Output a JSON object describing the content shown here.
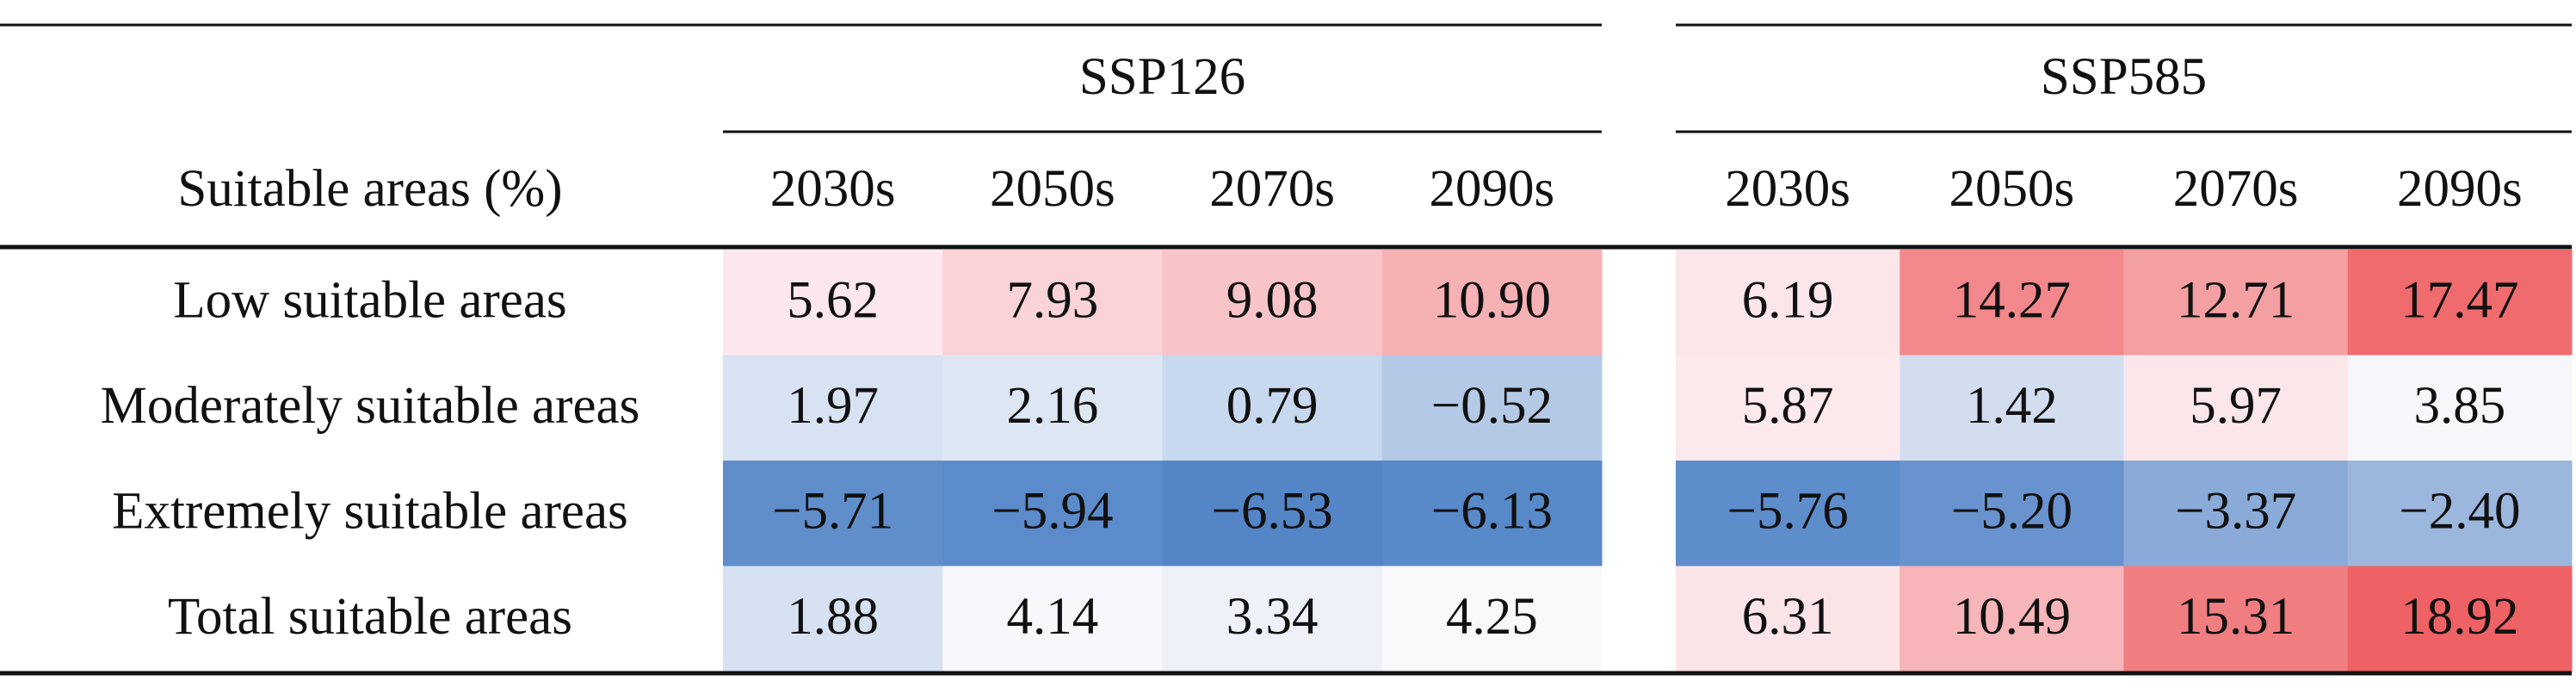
{
  "table": {
    "header_label": "Suitable areas (%)",
    "column_groups": [
      {
        "label": "SSP126",
        "years": [
          "2030s",
          "2050s",
          "2070s",
          "2090s"
        ]
      },
      {
        "label": "SSP585",
        "years": [
          "2030s",
          "2050s",
          "2070s",
          "2090s"
        ]
      }
    ],
    "rows": [
      {
        "label": "Low suitable areas",
        "values": [
          "5.62",
          "7.93",
          "9.08",
          "10.90",
          "6.19",
          "14.27",
          "12.71",
          "17.47"
        ],
        "colors": [
          "#fce8ec",
          "#f9d3d7",
          "#f8c4c8",
          "#f6b1b4",
          "#fbe6ea",
          "#f2888b",
          "#f4a0a2",
          "#ef6b6e"
        ]
      },
      {
        "label": "Moderately suitable areas",
        "values": [
          "1.97",
          "2.16",
          "0.79",
          "−0.52",
          "5.87",
          "1.42",
          "5.97",
          "3.85"
        ],
        "colors": [
          "#d7e2f2",
          "#dde7f4",
          "#c8d8ee",
          "#b4c9e6",
          "#fce9ec",
          "#d2def0",
          "#fbe6ea",
          "#f7f7fb"
        ]
      },
      {
        "label": "Extremely suitable areas",
        "values": [
          "−5.71",
          "−5.94",
          "−6.53",
          "−6.13",
          "−5.76",
          "−5.20",
          "−3.37",
          "−2.40"
        ],
        "colors": [
          "#5f8ecb",
          "#5b8bca",
          "#5485c7",
          "#5889c9",
          "#5e8dcb",
          "#6893ce",
          "#8aaad8",
          "#9cb7de"
        ]
      },
      {
        "label": "Total suitable areas",
        "values": [
          "1.88",
          "4.14",
          "3.34",
          "4.25",
          "6.31",
          "10.49",
          "15.31",
          "18.92"
        ],
        "colors": [
          "#d6e1f1",
          "#f8f8fc",
          "#eef1f8",
          "#faf8fb",
          "#fbe4e8",
          "#f6b5b8",
          "#f07e81",
          "#ee6164"
        ]
      }
    ]
  }
}
